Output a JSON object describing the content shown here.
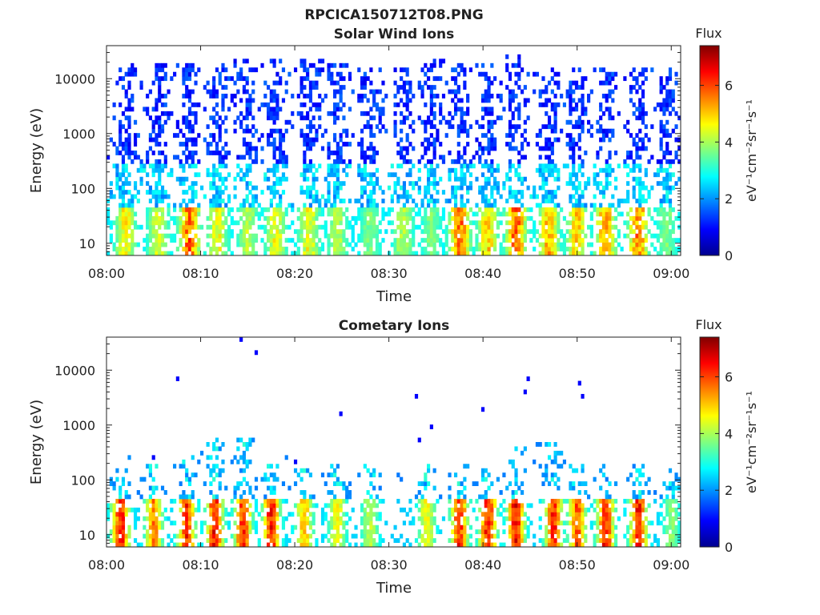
{
  "figure": {
    "title": "RPCICA150712T08.PNG"
  },
  "chart_data": [
    {
      "type": "heatmap",
      "title": "Solar Wind Ions",
      "xlabel": "Time",
      "ylabel": "Energy (eV)",
      "xticks": [
        "08:00",
        "08:10",
        "08:20",
        "08:30",
        "08:40",
        "08:50",
        "09:00"
      ],
      "xlim": [
        "08:00",
        "09:01"
      ],
      "yscale": "log",
      "yticks": [
        10,
        100,
        1000,
        10000
      ],
      "ytick_labels": [
        "10",
        "100",
        "1000",
        "10000"
      ],
      "ylim": [
        6,
        40000
      ],
      "colorbar": {
        "title": "Flux",
        "label": "eV⁻¹cm⁻²sr⁻¹s⁻¹",
        "range": [
          0,
          7.4
        ],
        "ticks": [
          0,
          2,
          4,
          6
        ],
        "tick_labels": [
          "0",
          "2",
          "4",
          "6"
        ],
        "colormap": "jet"
      },
      "bursts": [
        {
          "time_min": 2.0,
          "peak_flux": 5.2,
          "max_energy_ev": 20000
        },
        {
          "time_min": 5.5,
          "peak_flux": 4.8,
          "max_energy_ev": 20000
        },
        {
          "time_min": 8.8,
          "peak_flux": 6.5,
          "max_energy_ev": 20000
        },
        {
          "time_min": 11.8,
          "peak_flux": 5.0,
          "max_energy_ev": 20000
        },
        {
          "time_min": 15.0,
          "peak_flux": 4.5,
          "max_energy_ev": 25000
        },
        {
          "time_min": 18.0,
          "peak_flux": 5.0,
          "max_energy_ev": 25000
        },
        {
          "time_min": 21.5,
          "peak_flux": 5.0,
          "max_energy_ev": 25000
        },
        {
          "time_min": 24.5,
          "peak_flux": 4.5,
          "max_energy_ev": 20000
        },
        {
          "time_min": 28.0,
          "peak_flux": 4.0,
          "max_energy_ev": 15000
        },
        {
          "time_min": 31.5,
          "peak_flux": 4.5,
          "max_energy_ev": 15000
        },
        {
          "time_min": 34.5,
          "peak_flux": 4.0,
          "max_energy_ev": 25000
        },
        {
          "time_min": 37.5,
          "peak_flux": 6.5,
          "max_energy_ev": 20000
        },
        {
          "time_min": 40.5,
          "peak_flux": 5.5,
          "max_energy_ev": 20000
        },
        {
          "time_min": 43.5,
          "peak_flux": 6.5,
          "max_energy_ev": 30000
        },
        {
          "time_min": 47.0,
          "peak_flux": 5.8,
          "max_energy_ev": 15000
        },
        {
          "time_min": 50.0,
          "peak_flux": 5.5,
          "max_energy_ev": 15000
        },
        {
          "time_min": 53.0,
          "peak_flux": 6.0,
          "max_energy_ev": 15000
        },
        {
          "time_min": 56.5,
          "peak_flux": 6.2,
          "max_energy_ev": 15000
        },
        {
          "time_min": 59.5,
          "peak_flux": 4.0,
          "max_energy_ev": 15000
        }
      ]
    },
    {
      "type": "heatmap",
      "title": "Cometary Ions",
      "xlabel": "Time",
      "ylabel": "Energy (eV)",
      "xticks": [
        "08:00",
        "08:10",
        "08:20",
        "08:30",
        "08:40",
        "08:50",
        "09:00"
      ],
      "xlim": [
        "08:00",
        "09:01"
      ],
      "yscale": "log",
      "yticks": [
        10,
        100,
        1000,
        10000
      ],
      "ytick_labels": [
        "10",
        "100",
        "1000",
        "10000"
      ],
      "ylim": [
        6,
        40000
      ],
      "colorbar": {
        "title": "Flux",
        "label": "eV⁻¹cm⁻²sr⁻¹s⁻¹",
        "range": [
          0,
          7.4
        ],
        "ticks": [
          0,
          2,
          4,
          6
        ],
        "tick_labels": [
          "0",
          "2",
          "4",
          "6"
        ],
        "colormap": "jet"
      },
      "bursts": [
        {
          "time_min": 1.5,
          "peak_flux": 7.0,
          "max_energy_ev": 300
        },
        {
          "time_min": 5.0,
          "peak_flux": 6.0,
          "max_energy_ev": 200
        },
        {
          "time_min": 8.5,
          "peak_flux": 6.8,
          "max_energy_ev": 300
        },
        {
          "time_min": 11.5,
          "peak_flux": 7.0,
          "max_energy_ev": 600
        },
        {
          "time_min": 14.5,
          "peak_flux": 6.8,
          "max_energy_ev": 600
        },
        {
          "time_min": 17.5,
          "peak_flux": 7.0,
          "max_energy_ev": 300
        },
        {
          "time_min": 21.0,
          "peak_flux": 5.5,
          "max_energy_ev": 150
        },
        {
          "time_min": 24.5,
          "peak_flux": 5.0,
          "max_energy_ev": 200
        },
        {
          "time_min": 28.0,
          "peak_flux": 4.5,
          "max_energy_ev": 200
        },
        {
          "time_min": 34.0,
          "peak_flux": 5.0,
          "max_energy_ev": 200
        },
        {
          "time_min": 37.5,
          "peak_flux": 6.8,
          "max_energy_ev": 200
        },
        {
          "time_min": 40.5,
          "peak_flux": 7.0,
          "max_energy_ev": 150
        },
        {
          "time_min": 43.5,
          "peak_flux": 7.2,
          "max_energy_ev": 400
        },
        {
          "time_min": 47.5,
          "peak_flux": 6.8,
          "max_energy_ev": 500
        },
        {
          "time_min": 50.0,
          "peak_flux": 6.5,
          "max_energy_ev": 200
        },
        {
          "time_min": 53.0,
          "peak_flux": 7.0,
          "max_energy_ev": 200
        },
        {
          "time_min": 56.5,
          "peak_flux": 7.0,
          "max_energy_ev": 200
        },
        {
          "time_min": 60.0,
          "peak_flux": 4.0,
          "max_energy_ev": 150
        }
      ]
    }
  ]
}
